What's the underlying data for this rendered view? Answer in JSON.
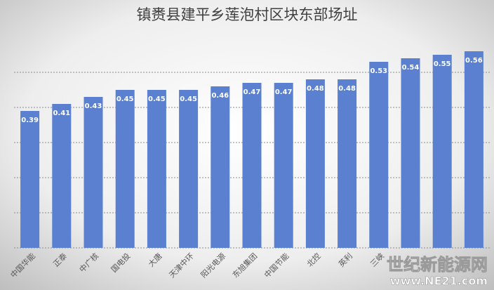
{
  "chart_data": {
    "type": "bar",
    "title": "镇赉县建平乡莲泡村区块东部场址",
    "categories": [
      "中国华能",
      "正泰",
      "中广核",
      "国电投",
      "大唐",
      "天津中环",
      "阳光电源",
      "东旭集团",
      "中国节能",
      "北控",
      "英利",
      "三峡",
      null,
      null,
      null
    ],
    "values": [
      0.39,
      0.41,
      0.43,
      0.45,
      0.45,
      0.45,
      0.46,
      0.47,
      0.47,
      0.48,
      0.48,
      0.53,
      0.54,
      0.55,
      0.56
    ],
    "color": "#5a80cf",
    "ylim": [
      0,
      0.6
    ],
    "yticks": [
      0,
      0.1,
      0.2,
      0.3,
      0.4,
      0.5
    ],
    "grid": true,
    "watermark": [
      "世纪新能源网",
      "www.NE21.com"
    ]
  }
}
